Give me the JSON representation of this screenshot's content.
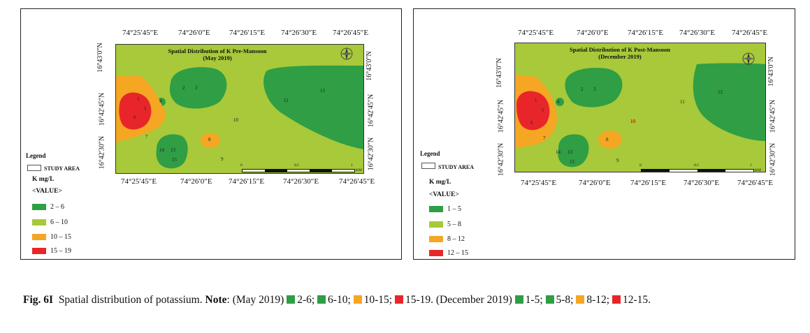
{
  "colors": {
    "dark_green": "#2f9e44",
    "light_green": "#a7c93a",
    "orange": "#f5a623",
    "red": "#e8262a"
  },
  "map_may": {
    "title_line1": "Spatial Distribution of K Pre-Mansoon",
    "title_line2": "(May 2019)",
    "top_coords": [
      "74°25′45″E",
      "74°26′0″E",
      "74°26′15″E",
      "74°26′30″E",
      "74°26′45″E"
    ],
    "bottom_coords": [
      "74°25′45″E",
      "74°26′0″E",
      "74°26′15″E",
      "74°26′30″E",
      "74°26′45″E"
    ],
    "left_coords": [
      "16°43′0″N",
      "16°42′45″N",
      "16°42′30″N"
    ],
    "right_coords": [
      "16°43′0″N",
      "16°42′45″N",
      "16°42′30″N"
    ],
    "scale_labels": [
      "0",
      "0.5",
      "1",
      "KM"
    ],
    "legend": {
      "heading": "Legend",
      "study_area": "STUDY AREA",
      "units": "K mg/L",
      "value": "<VALUE>",
      "items": [
        {
          "label": "2 – 6",
          "color": "#2f9e44"
        },
        {
          "label": "6 – 10",
          "color": "#a7c93a"
        },
        {
          "label": "10 – 15",
          "color": "#f5a623"
        },
        {
          "label": "15 – 19",
          "color": "#e8262a"
        }
      ]
    },
    "stations": [
      "1",
      "2",
      "3",
      "4",
      "5",
      "6",
      "7",
      "8",
      "9",
      "10",
      "11",
      "12",
      "13",
      "14",
      "15"
    ]
  },
  "map_dec": {
    "title_line1": "Spatial Distribution of K Post-Mansoon",
    "title_line2": "(December 2019)",
    "top_coords": [
      "74°25′45″E",
      "74°26′0″E",
      "74°26′15″E",
      "74°26′30″E",
      "74°26′45″E"
    ],
    "bottom_coords": [
      "74°25′45″E",
      "74°26′0″E",
      "74°26′15″E",
      "74°26′30″E",
      "74°26′45″E"
    ],
    "left_coords": [
      "16°43′0″N",
      "16°42′45″N",
      "16°42′30″N"
    ],
    "right_coords": [
      "16°43′0″N",
      "16°42′45″N",
      "16°42′30″N"
    ],
    "scale_labels": [
      "0",
      "0.5",
      "1",
      "KM"
    ],
    "legend": {
      "heading": "Legend",
      "study_area": "STUDY AREA",
      "units": "K mg/L",
      "value": "<VALUE>",
      "items": [
        {
          "label": "1 – 5",
          "color": "#2f9e44"
        },
        {
          "label": "5 – 8",
          "color": "#a7c93a"
        },
        {
          "label": "8 – 12",
          "color": "#f5a623"
        },
        {
          "label": "12 – 15",
          "color": "#e8262a"
        }
      ]
    },
    "stations": [
      "1",
      "2",
      "3",
      "4",
      "5",
      "6",
      "7",
      "8",
      "9",
      "10",
      "11",
      "12",
      "13",
      "14",
      "15"
    ]
  },
  "caption": {
    "fig": "Fig. 6I",
    "text": "Spatial distribution of potassium.",
    "note_label": "Note",
    "may": "(May 2019)",
    "may_items": [
      "2-6;",
      "6-10;",
      "10-15;",
      "15-19."
    ],
    "dec": "(December 2019)",
    "dec_items": [
      "1-5;",
      "5-8;",
      "8-12;",
      "12-15."
    ]
  }
}
